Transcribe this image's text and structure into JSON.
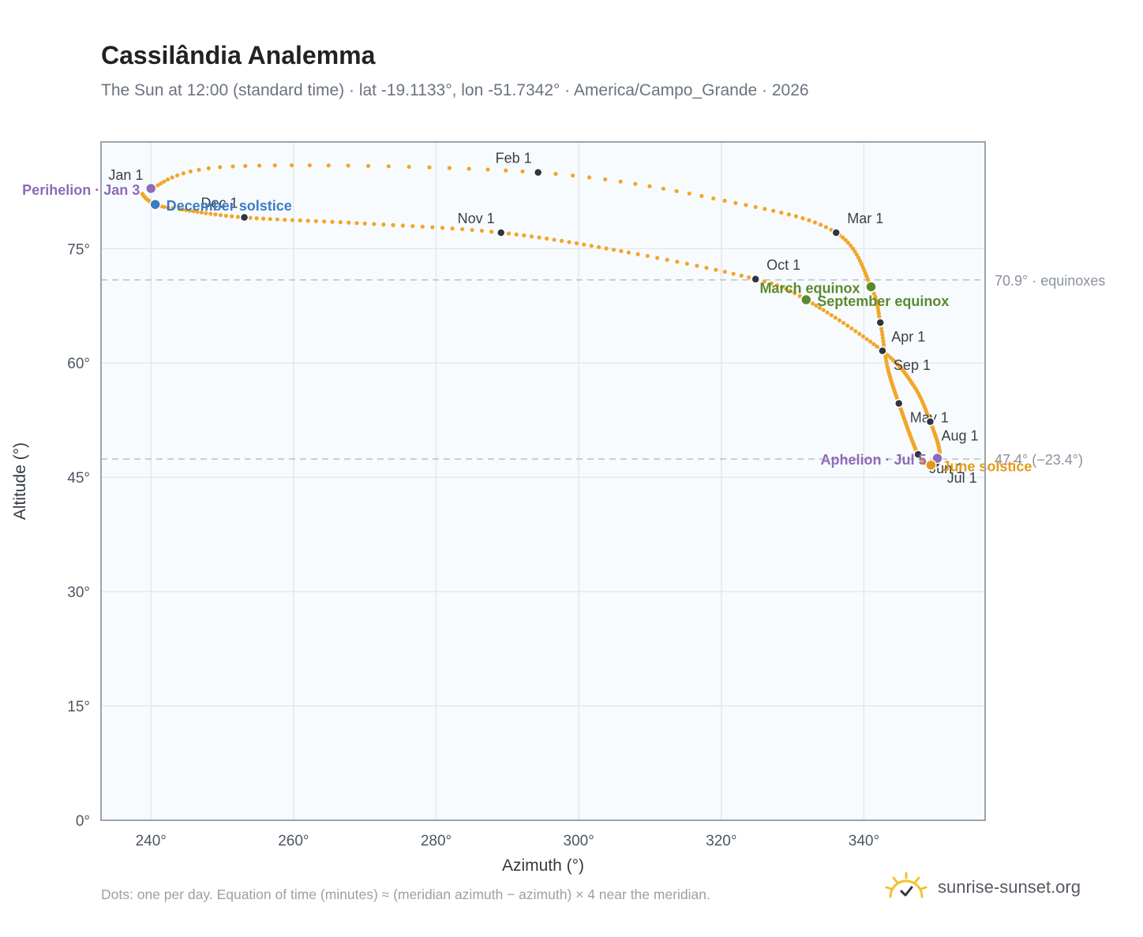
{
  "title": "Cassilândia Analemma",
  "subtitle": "The Sun at 12:00 (standard time) · lat -19.1133°, lon -51.7342° · America/Campo_Grande · 2026",
  "footnote": "Dots: one per day. Equation of time (minutes) ≈ (meridian azimuth − azimuth) × 4 near the meridian.",
  "brand": {
    "name": "sunrise-sunset.org",
    "icon": "sun-logo-icon"
  },
  "colors": {
    "path": "#f2a629",
    "month_dot": "#2f3640",
    "equinox": "#5a8a2e",
    "december_solstice": "#3b7cc4",
    "june_solstice": "#e39a1a",
    "apsis": "#8e6bb8",
    "reference_line": "#b8bec7",
    "plot_bg": "#f8fbfe",
    "grid": "#e3e8ee",
    "frame": "#9aa3ae"
  },
  "chart_data": {
    "type": "scatter",
    "xlabel": "Azimuth (°)",
    "ylabel": "Altitude (°)",
    "xlim": [
      233,
      357
    ],
    "ylim": [
      0,
      89
    ],
    "x_ticks": [
      240,
      260,
      280,
      300,
      320,
      340
    ],
    "x_tick_labels": [
      "240°",
      "260°",
      "280°",
      "300°",
      "320°",
      "340°"
    ],
    "y_ticks": [
      0,
      15,
      30,
      45,
      60,
      75
    ],
    "y_tick_labels": [
      "0°",
      "15°",
      "30°",
      "45°",
      "60°",
      "75°"
    ],
    "grid": true,
    "reference_lines": [
      {
        "y": 70.9,
        "label": "70.9° · equinoxes"
      },
      {
        "y": 47.4,
        "label": "47.4° (−23.4°)"
      }
    ],
    "daily_path_anchors": [
      {
        "date": "Jan 1",
        "az": 239.8,
        "alt": 82.8
      },
      {
        "date": "Jan 15",
        "az": 251.5,
        "alt": 85.8
      },
      {
        "date": "Feb 1",
        "az": 294.3,
        "alt": 85.0
      },
      {
        "date": "Feb 15",
        "az": 322.0,
        "alt": 81.0
      },
      {
        "date": "Mar 1",
        "az": 336.1,
        "alt": 77.1
      },
      {
        "date": "Mar 20",
        "az": 341.0,
        "alt": 70.0
      },
      {
        "date": "Apr 1",
        "az": 342.3,
        "alt": 65.3
      },
      {
        "date": "Apr 15",
        "az": 343.3,
        "alt": 59.5
      },
      {
        "date": "May 1",
        "az": 344.9,
        "alt": 54.7
      },
      {
        "date": "Jun 1",
        "az": 347.6,
        "alt": 48.0
      },
      {
        "date": "Jun 21",
        "az": 349.4,
        "alt": 46.6
      },
      {
        "date": "Jul 1",
        "az": 350.1,
        "alt": 46.8
      },
      {
        "date": "Jul 15",
        "az": 350.6,
        "alt": 48.5
      },
      {
        "date": "Aug 1",
        "az": 349.3,
        "alt": 52.3
      },
      {
        "date": "Aug 15",
        "az": 347.0,
        "alt": 57.0
      },
      {
        "date": "Sep 1",
        "az": 342.6,
        "alt": 61.6
      },
      {
        "date": "Sep 22",
        "az": 331.9,
        "alt": 68.3
      },
      {
        "date": "Oct 1",
        "az": 324.8,
        "alt": 71.0
      },
      {
        "date": "Oct 15",
        "az": 307.0,
        "alt": 74.5
      },
      {
        "date": "Nov 1",
        "az": 289.1,
        "alt": 77.1
      },
      {
        "date": "Nov 15",
        "az": 270.0,
        "alt": 78.3
      },
      {
        "date": "Dec 1",
        "az": 253.1,
        "alt": 79.1
      },
      {
        "date": "Dec 15",
        "az": 244.0,
        "alt": 80.2
      },
      {
        "date": "Dec 21",
        "az": 240.6,
        "alt": 80.8
      },
      {
        "date": "Dec 31",
        "az": 238.8,
        "alt": 82.2
      }
    ],
    "month_markers": [
      {
        "label": "Jan 1",
        "az": 239.8,
        "alt": 82.8,
        "anchor": "end",
        "pos": "above"
      },
      {
        "label": "Feb 1",
        "az": 294.3,
        "alt": 85.0,
        "anchor": "end",
        "pos": "above"
      },
      {
        "label": "Mar 1",
        "az": 336.1,
        "alt": 77.1,
        "anchor": "start",
        "pos": "above"
      },
      {
        "label": "Apr 1",
        "az": 342.3,
        "alt": 65.3,
        "anchor": "start",
        "pos": "below"
      },
      {
        "label": "May 1",
        "az": 344.9,
        "alt": 54.7,
        "anchor": "start",
        "pos": "below"
      },
      {
        "label": "Jun 1",
        "az": 347.6,
        "alt": 48.0,
        "anchor": "start",
        "pos": "below"
      },
      {
        "label": "Jul 1",
        "az": 350.1,
        "alt": 46.8,
        "anchor": "start",
        "pos": "below"
      },
      {
        "label": "Aug 1",
        "az": 349.3,
        "alt": 52.3,
        "anchor": "start",
        "pos": "below"
      },
      {
        "label": "Sep 1",
        "az": 342.6,
        "alt": 61.6,
        "anchor": "start",
        "pos": "below"
      },
      {
        "label": "Oct 1",
        "az": 324.8,
        "alt": 71.0,
        "anchor": "start",
        "pos": "above"
      },
      {
        "label": "Nov 1",
        "az": 289.1,
        "alt": 77.1,
        "anchor": "end",
        "pos": "above"
      },
      {
        "label": "Dec 1",
        "az": 253.1,
        "alt": 79.1,
        "anchor": "end",
        "pos": "above"
      }
    ],
    "events": [
      {
        "label": "Perihelion · Jan 3",
        "az": 240.0,
        "alt": 82.9,
        "kind": "apsis",
        "anchor": "end"
      },
      {
        "label": "December solstice",
        "az": 240.6,
        "alt": 80.8,
        "kind": "december_solstice",
        "anchor": "start"
      },
      {
        "label": "March equinox",
        "az": 341.0,
        "alt": 70.0,
        "kind": "equinox",
        "anchor": "end"
      },
      {
        "label": "September equinox",
        "az": 331.9,
        "alt": 68.3,
        "kind": "equinox",
        "anchor": "start"
      },
      {
        "label": "Aphelion · Jul 5",
        "az": 350.3,
        "alt": 47.5,
        "kind": "apsis",
        "anchor": "end"
      },
      {
        "label": "June solstice",
        "az": 349.4,
        "alt": 46.6,
        "kind": "june_solstice",
        "anchor": "start"
      }
    ]
  }
}
